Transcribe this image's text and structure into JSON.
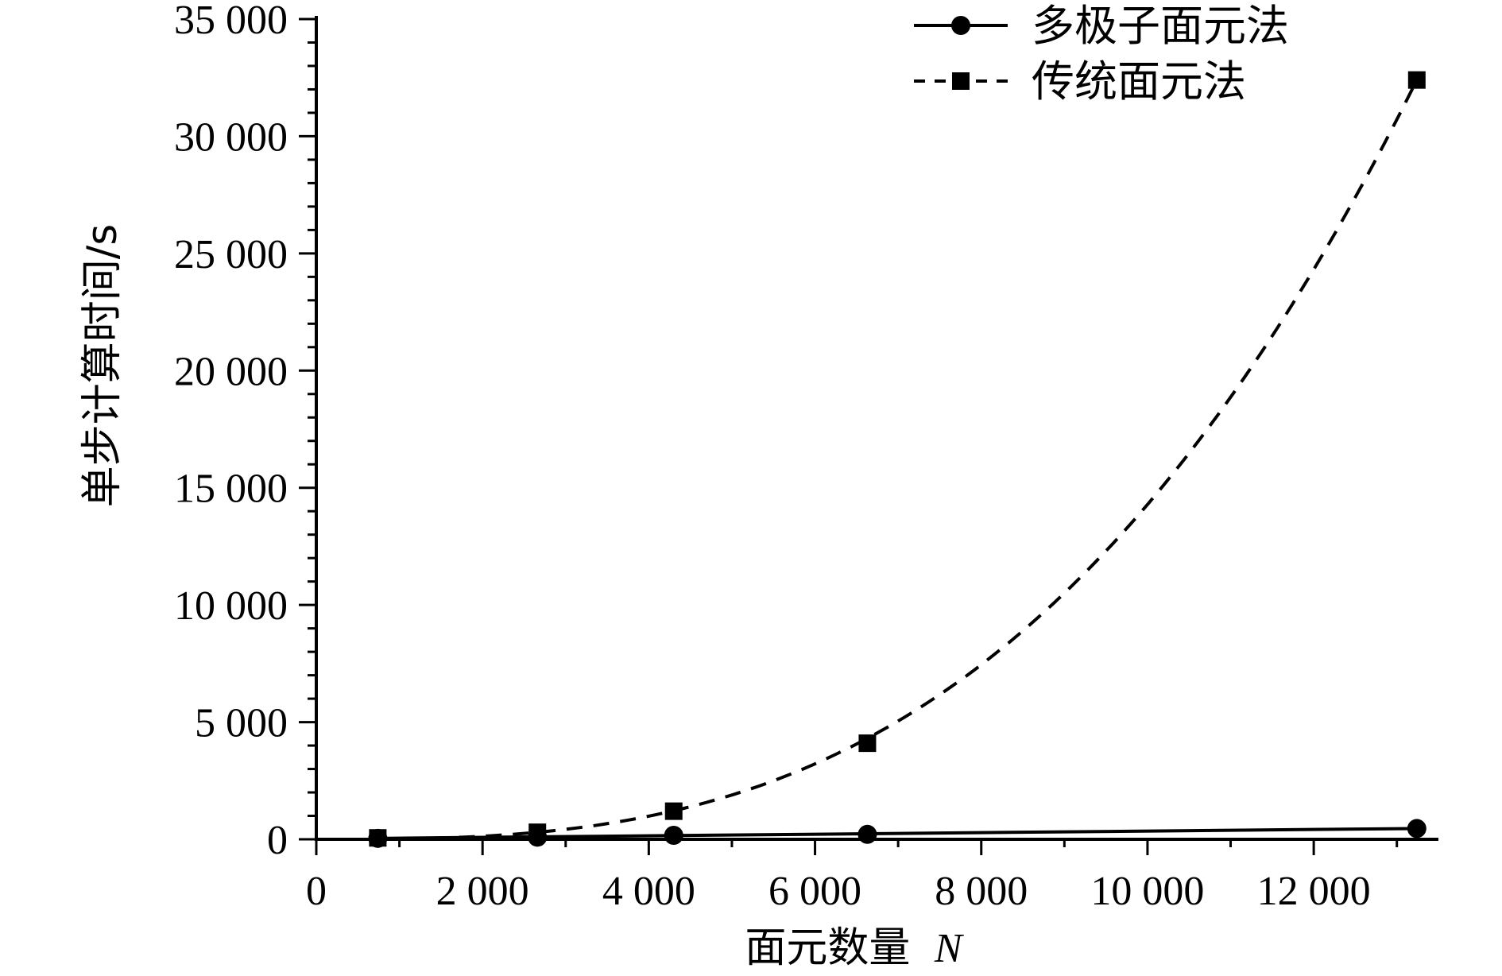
{
  "chart_data": {
    "type": "line",
    "xlabel": "面元数量",
    "xlabel_var": "N",
    "ylabel": "单步计算时间/s",
    "xlim": [
      0,
      13500
    ],
    "ylim": [
      0,
      35000
    ],
    "x_ticks": [
      0,
      2000,
      4000,
      6000,
      8000,
      10000,
      12000
    ],
    "x_tick_labels": [
      "0",
      "2 000",
      "4 000",
      "6 000",
      "8 000",
      "10 000",
      "12 000"
    ],
    "y_ticks": [
      0,
      5000,
      10000,
      15000,
      20000,
      25000,
      30000,
      35000
    ],
    "y_tick_labels": [
      "0",
      "5 000",
      "10 000",
      "15 000",
      "20 000",
      "25 000",
      "30 000",
      "35 000"
    ],
    "grid": false,
    "legend_position": "top-right",
    "series": [
      {
        "name": "多极子面元法",
        "marker": "circle",
        "line_style": "solid",
        "color": "#000000",
        "x": [
          740,
          2660,
          4300,
          6630,
          13240
        ],
        "y": [
          40,
          90,
          170,
          210,
          460
        ]
      },
      {
        "name": "传统面元法",
        "marker": "square",
        "line_style": "dashed",
        "color": "#000000",
        "x": [
          740,
          2660,
          4300,
          6630,
          13240
        ],
        "y": [
          60,
          300,
          1200,
          4100,
          32400
        ]
      }
    ]
  }
}
